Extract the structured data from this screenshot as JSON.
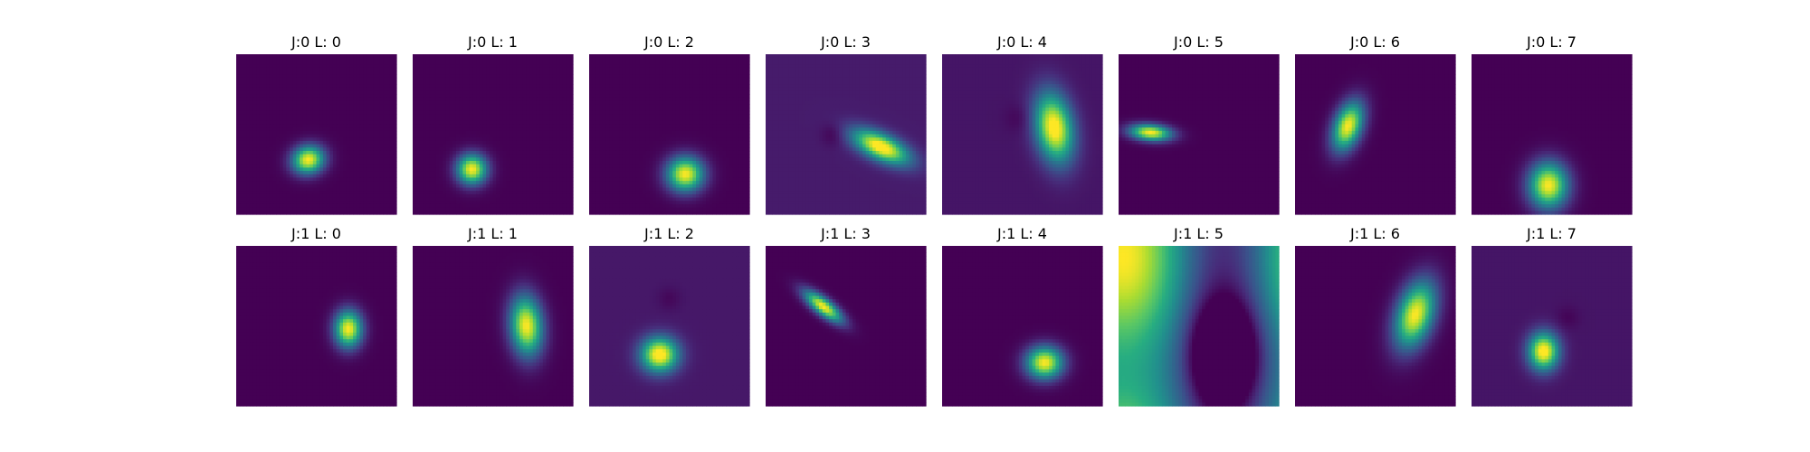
{
  "figure": {
    "colormap": "viridis",
    "axes_visible": false
  },
  "chart_data": [
    {
      "type": "heatmap",
      "title": "J:0 L: 0",
      "description": "bright blob",
      "blobs": [
        {
          "cx": 0.45,
          "cy": 0.66,
          "sx": 0.07,
          "sy": 0.06,
          "angle": -15,
          "amp": 1.0
        }
      ],
      "background": 0.0
    },
    {
      "type": "heatmap",
      "title": "J:0 L: 1",
      "blobs": [
        {
          "cx": 0.37,
          "cy": 0.72,
          "sx": 0.065,
          "sy": 0.065,
          "angle": 0,
          "amp": 1.0
        }
      ],
      "background": 0.0
    },
    {
      "type": "heatmap",
      "title": "J:0 L: 2",
      "blobs": [
        {
          "cx": 0.6,
          "cy": 0.75,
          "sx": 0.08,
          "sy": 0.075,
          "angle": 0,
          "amp": 1.0
        }
      ],
      "background": 0.0
    },
    {
      "type": "heatmap",
      "title": "J:0 L: 3",
      "blobs": [
        {
          "cx": 0.72,
          "cy": 0.58,
          "sx": 0.13,
          "sy": 0.055,
          "angle": 25,
          "amp": 1.0
        },
        {
          "cx": 0.42,
          "cy": 0.5,
          "sx": 0.05,
          "sy": 0.05,
          "angle": 0,
          "amp": -0.08
        }
      ],
      "background": 0.08
    },
    {
      "type": "heatmap",
      "title": "J:0 L: 4",
      "blobs": [
        {
          "cx": 0.7,
          "cy": 0.46,
          "sx": 0.08,
          "sy": 0.15,
          "angle": -10,
          "amp": 1.0
        },
        {
          "cx": 0.48,
          "cy": 0.4,
          "sx": 0.06,
          "sy": 0.06,
          "angle": 0,
          "amp": -0.05
        }
      ],
      "background": 0.06
    },
    {
      "type": "heatmap",
      "title": "J:0 L: 5",
      "blobs": [
        {
          "cx": 0.2,
          "cy": 0.49,
          "sx": 0.09,
          "sy": 0.035,
          "angle": 5,
          "amp": 1.0
        }
      ],
      "background": 0.0
    },
    {
      "type": "heatmap",
      "title": "J:0 L: 6",
      "blobs": [
        {
          "cx": 0.33,
          "cy": 0.45,
          "sx": 0.06,
          "sy": 0.11,
          "angle": 20,
          "amp": 1.0
        }
      ],
      "background": 0.0
    },
    {
      "type": "heatmap",
      "title": "J:0 L: 7",
      "blobs": [
        {
          "cx": 0.48,
          "cy": 0.82,
          "sx": 0.085,
          "sy": 0.1,
          "angle": 0,
          "amp": 1.0
        }
      ],
      "background": 0.0
    },
    {
      "type": "heatmap",
      "title": "J:1 L: 0",
      "blobs": [
        {
          "cx": 0.7,
          "cy": 0.52,
          "sx": 0.06,
          "sy": 0.08,
          "angle": 0,
          "amp": 1.0
        }
      ],
      "background": 0.0
    },
    {
      "type": "heatmap",
      "title": "J:1 L: 1",
      "blobs": [
        {
          "cx": 0.71,
          "cy": 0.5,
          "sx": 0.07,
          "sy": 0.13,
          "angle": -5,
          "amp": 1.0
        }
      ],
      "background": 0.0
    },
    {
      "type": "heatmap",
      "title": "J:1 L: 2",
      "blobs": [
        {
          "cx": 0.44,
          "cy": 0.68,
          "sx": 0.08,
          "sy": 0.075,
          "angle": 0,
          "amp": 1.0
        },
        {
          "cx": 0.5,
          "cy": 0.33,
          "sx": 0.05,
          "sy": 0.05,
          "angle": 0,
          "amp": -0.05
        }
      ],
      "background": 0.07
    },
    {
      "type": "heatmap",
      "title": "J:1 L: 3",
      "blobs": [
        {
          "cx": 0.36,
          "cy": 0.38,
          "sx": 0.1,
          "sy": 0.035,
          "angle": 38,
          "amp": 1.0
        }
      ],
      "background": 0.0
    },
    {
      "type": "heatmap",
      "title": "J:1 L: 4",
      "blobs": [
        {
          "cx": 0.64,
          "cy": 0.73,
          "sx": 0.08,
          "sy": 0.07,
          "angle": 0,
          "amp": 1.0
        }
      ],
      "background": 0.0
    },
    {
      "type": "heatmap",
      "title": "J:1 L: 5",
      "pattern": "sinusoidal",
      "background": 0.0
    },
    {
      "type": "heatmap",
      "title": "J:1 L: 6",
      "blobs": [
        {
          "cx": 0.75,
          "cy": 0.43,
          "sx": 0.08,
          "sy": 0.15,
          "angle": 18,
          "amp": 1.0
        }
      ],
      "background": 0.0
    },
    {
      "type": "heatmap",
      "title": "J:1 L: 7",
      "blobs": [
        {
          "cx": 0.45,
          "cy": 0.66,
          "sx": 0.065,
          "sy": 0.08,
          "angle": 0,
          "amp": 1.0
        },
        {
          "cx": 0.6,
          "cy": 0.45,
          "sx": 0.05,
          "sy": 0.05,
          "angle": 0,
          "amp": -0.05
        }
      ],
      "background": 0.06
    }
  ]
}
